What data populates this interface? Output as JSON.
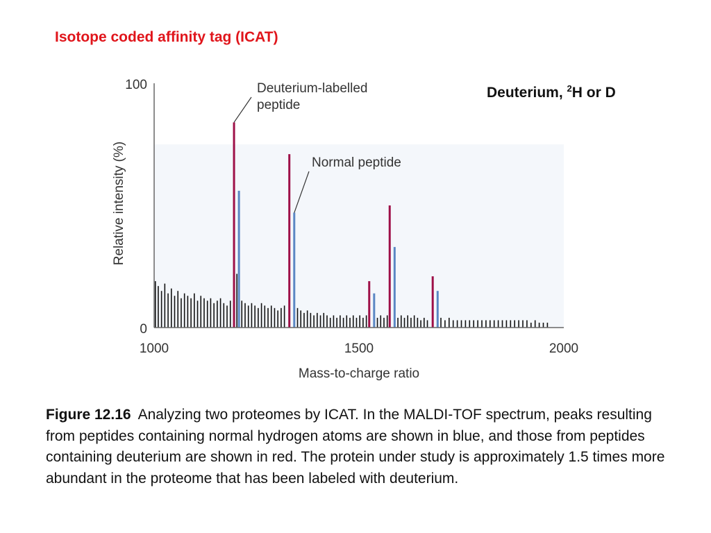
{
  "slide": {
    "title": "Isotope coded affinity tag (ICAT)",
    "side_note_prefix": "Deuterium, ",
    "side_note_sup": "2",
    "side_note_suffix": "H or D"
  },
  "caption": {
    "label": "Figure 12.16",
    "text": "Analyzing two proteomes by ICAT. In the MALDI-TOF spectrum, peaks resulting from peptides containing normal hydrogen atoms are shown in blue, and those from peptides containing deuterium are shown in red. The protein under study is approximately 1.5 times more abundant in the proteome that has been labeled with deuterium."
  },
  "colors": {
    "deuterium": "#9e1048",
    "normal": "#5b87c4",
    "background_peaks": "#111111",
    "axis": "#666666",
    "panel": "#f4f7fb",
    "title": "#e0151b"
  },
  "chart_data": {
    "type": "bar",
    "xlabel": "Mass-to-charge ratio",
    "ylabel": "Relative intensity (%)",
    "xlim": [
      1000,
      2000
    ],
    "ylim": [
      0,
      100
    ],
    "x_ticks": [
      1000,
      1500,
      2000
    ],
    "y_ticks": [
      0,
      100
    ],
    "series": [
      {
        "name": "Deuterium-labelled peptide",
        "color": "#9e1048",
        "x": [
          1195,
          1330,
          1525,
          1575,
          1680
        ],
        "values": [
          84,
          71,
          19,
          50,
          21
        ]
      },
      {
        "name": "Normal peptide",
        "color": "#5b87c4",
        "x": [
          1207,
          1342,
          1537,
          1587,
          1692
        ],
        "values": [
          56,
          47,
          14,
          33,
          15
        ]
      }
    ],
    "annotations": [
      {
        "text_lines": [
          "Deuterium-labelled",
          "peptide"
        ],
        "points_to_x": 1195,
        "points_to_y": 84
      },
      {
        "text_lines": [
          "Normal peptide"
        ],
        "points_to_x": 1342,
        "points_to_y": 47
      }
    ],
    "background_peaks": {
      "description_color": "#111111",
      "x": [
        1003,
        1010,
        1018,
        1026,
        1034,
        1042,
        1050,
        1058,
        1066,
        1074,
        1082,
        1090,
        1098,
        1106,
        1114,
        1122,
        1130,
        1138,
        1146,
        1154,
        1162,
        1170,
        1178,
        1186,
        1202,
        1214,
        1222,
        1230,
        1238,
        1246,
        1254,
        1262,
        1270,
        1278,
        1286,
        1294,
        1302,
        1310,
        1318,
        1350,
        1358,
        1366,
        1374,
        1382,
        1390,
        1398,
        1406,
        1414,
        1422,
        1430,
        1438,
        1446,
        1454,
        1462,
        1470,
        1478,
        1486,
        1494,
        1502,
        1510,
        1518,
        1545,
        1553,
        1561,
        1569,
        1595,
        1603,
        1611,
        1619,
        1627,
        1635,
        1643,
        1651,
        1659,
        1667,
        1700,
        1710,
        1720,
        1730,
        1740,
        1750,
        1760,
        1770,
        1780,
        1790,
        1800,
        1810,
        1820,
        1830,
        1840,
        1850,
        1860,
        1870,
        1880,
        1890,
        1900,
        1910,
        1920,
        1930,
        1940,
        1950,
        1960
      ],
      "values": [
        19,
        17,
        15,
        18,
        14,
        16,
        13,
        15,
        12,
        14,
        13,
        12,
        14,
        11,
        13,
        12,
        11,
        12,
        10,
        11,
        12,
        10,
        9,
        11,
        22,
        11,
        10,
        9,
        10,
        9,
        8,
        10,
        9,
        8,
        9,
        8,
        7,
        8,
        9,
        8,
        7,
        6,
        7,
        6,
        5,
        6,
        5,
        6,
        5,
        4,
        5,
        4,
        5,
        4,
        5,
        4,
        5,
        4,
        5,
        4,
        5,
        4,
        5,
        4,
        5,
        4,
        5,
        4,
        5,
        4,
        5,
        4,
        3,
        4,
        3,
        4,
        3,
        4,
        3,
        3,
        3,
        3,
        3,
        3,
        3,
        3,
        3,
        3,
        3,
        3,
        3,
        3,
        3,
        3,
        3,
        3,
        3,
        2,
        3,
        2,
        2,
        2
      ]
    }
  }
}
